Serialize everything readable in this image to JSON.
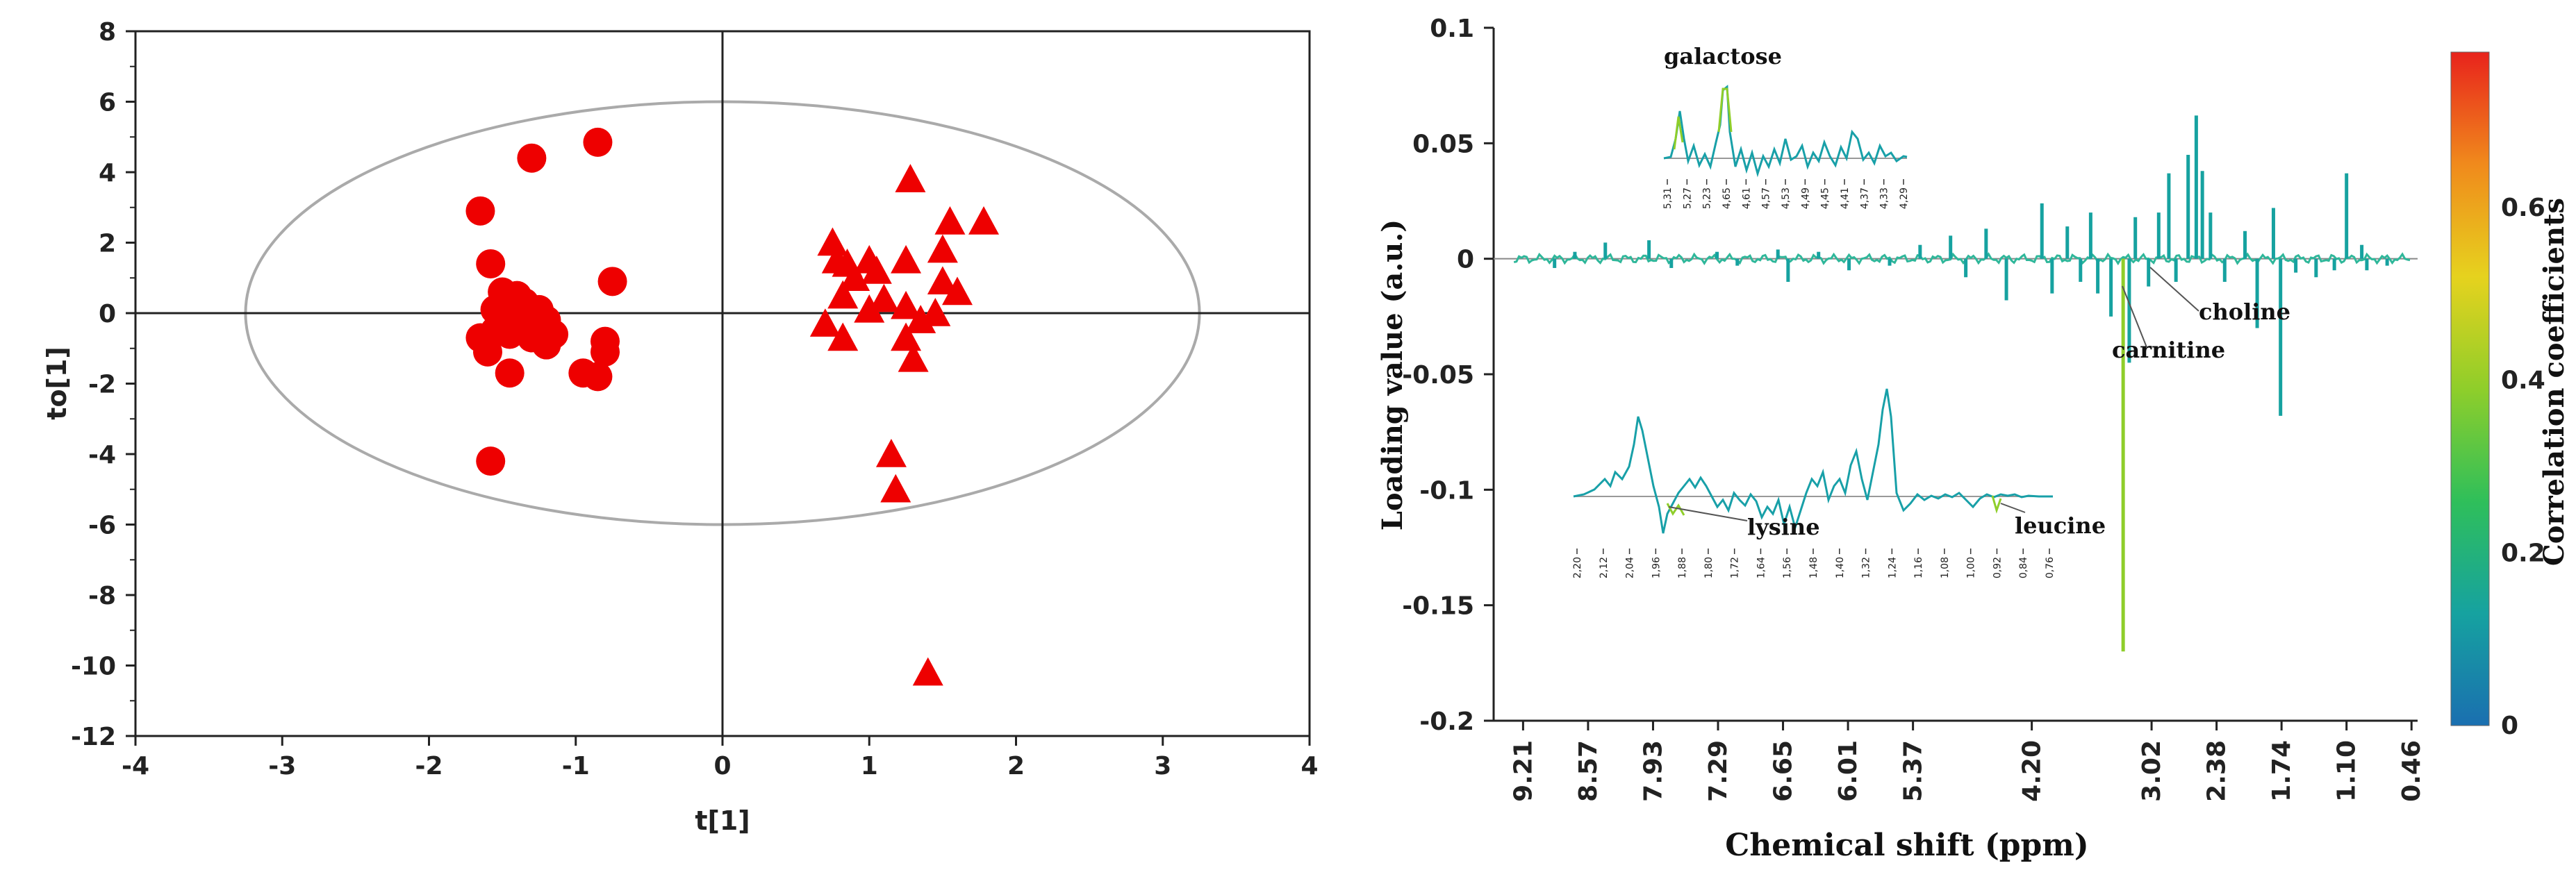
{
  "colors": {
    "points": "#ee0000",
    "ellipse": "#aaaaaa",
    "axis": "#222222"
  },
  "chart_data": [
    {
      "type": "scatter",
      "title": "",
      "xlabel": "t[1]",
      "ylabel": "to[1]",
      "xlim": [
        -4,
        4
      ],
      "ylim": [
        -12,
        8
      ],
      "x_ticks": [
        "-4",
        "-3",
        "-2",
        "-1",
        "0",
        "1",
        "2",
        "3",
        "4"
      ],
      "y_ticks": [
        "8",
        "6",
        "4",
        "2",
        "0",
        "-2",
        "-4",
        "-6",
        "-8",
        "-10",
        "-12"
      ],
      "ellipse": {
        "center": [
          0,
          0
        ],
        "rx": 3.25,
        "ry": 6.0
      },
      "series": [
        {
          "name": "group-circles",
          "marker": "circle",
          "points": [
            [
              -1.65,
              2.9
            ],
            [
              -1.3,
              4.4
            ],
            [
              -0.85,
              4.85
            ],
            [
              -1.58,
              1.4
            ],
            [
              -0.75,
              0.9
            ],
            [
              -1.5,
              0.6
            ],
            [
              -1.4,
              0.5
            ],
            [
              -1.35,
              0.3
            ],
            [
              -1.55,
              0.1
            ],
            [
              -1.45,
              0.0
            ],
            [
              -1.25,
              0.1
            ],
            [
              -1.2,
              -0.2
            ],
            [
              -1.15,
              -0.6
            ],
            [
              -1.35,
              -0.4
            ],
            [
              -1.45,
              -0.6
            ],
            [
              -1.55,
              -0.5
            ],
            [
              -1.65,
              -0.7
            ],
            [
              -1.3,
              -0.7
            ],
            [
              -1.2,
              -0.9
            ],
            [
              -1.6,
              -1.1
            ],
            [
              -0.8,
              -0.8
            ],
            [
              -0.8,
              -1.1
            ],
            [
              -0.95,
              -1.7
            ],
            [
              -0.85,
              -1.8
            ],
            [
              -1.45,
              -1.7
            ],
            [
              -1.58,
              -4.2
            ],
            [
              -1.4,
              -0.2
            ]
          ]
        },
        {
          "name": "group-triangles",
          "marker": "triangle",
          "points": [
            [
              1.28,
              3.8
            ],
            [
              1.55,
              2.6
            ],
            [
              1.78,
              2.6
            ],
            [
              0.75,
              2.0
            ],
            [
              1.5,
              1.8
            ],
            [
              0.78,
              1.5
            ],
            [
              0.85,
              1.4
            ],
            [
              1.0,
              1.5
            ],
            [
              1.25,
              1.5
            ],
            [
              1.05,
              1.2
            ],
            [
              1.5,
              0.9
            ],
            [
              0.9,
              1.0
            ],
            [
              1.6,
              0.6
            ],
            [
              0.82,
              0.5
            ],
            [
              1.1,
              0.4
            ],
            [
              1.25,
              0.2
            ],
            [
              1.0,
              0.1
            ],
            [
              1.45,
              0.0
            ],
            [
              0.7,
              -0.3
            ],
            [
              1.35,
              -0.2
            ],
            [
              0.82,
              -0.7
            ],
            [
              1.25,
              -0.7
            ],
            [
              1.3,
              -1.3
            ],
            [
              1.15,
              -4.0
            ],
            [
              1.18,
              -5.0
            ],
            [
              1.4,
              -10.2
            ]
          ]
        }
      ]
    },
    {
      "type": "line",
      "title": "",
      "xlabel": "Chemical shift (ppm)",
      "ylabel": "Loading value (a.u.)",
      "xlim": [
        9.5,
        0.4
      ],
      "ylim": [
        -0.2,
        0.1
      ],
      "x_ticks": [
        "9.21",
        "8.57",
        "7.93",
        "7.29",
        "6.65",
        "6.01",
        "5.37",
        "4.20",
        "3.02",
        "2.38",
        "1.74",
        "1.10",
        "0.46"
      ],
      "y_ticks": [
        "0.1",
        "0.05",
        "0",
        "-0.05",
        "-0.1",
        "-0.15",
        "-0.2"
      ],
      "colorbar": {
        "label": "Correlation coefficients",
        "ticks": [
          "0",
          "0.2",
          "0.4",
          "0.6"
        ],
        "range": [
          0,
          0.78
        ],
        "colors": [
          "#1a6fb0",
          "#16a2a0",
          "#2fbf5a",
          "#8fce2a",
          "#e6d21e",
          "#f08a1c",
          "#e8231c"
        ]
      },
      "peaks": [
        [
          8.9,
          -0.004
        ],
        [
          8.7,
          0.003
        ],
        [
          8.4,
          0.007
        ],
        [
          7.97,
          0.008
        ],
        [
          7.75,
          -0.004
        ],
        [
          7.3,
          0.003
        ],
        [
          7.1,
          -0.003
        ],
        [
          6.7,
          0.004
        ],
        [
          6.6,
          -0.01
        ],
        [
          6.3,
          0.003
        ],
        [
          6.0,
          -0.005
        ],
        [
          5.6,
          -0.003
        ],
        [
          5.3,
          0.006
        ],
        [
          5.0,
          0.01
        ],
        [
          4.85,
          -0.008
        ],
        [
          4.65,
          0.013
        ],
        [
          4.45,
          -0.018
        ],
        [
          4.1,
          0.024
        ],
        [
          4.0,
          -0.015
        ],
        [
          3.85,
          0.014
        ],
        [
          3.72,
          -0.01
        ],
        [
          3.62,
          0.02
        ],
        [
          3.55,
          -0.015
        ],
        [
          3.42,
          -0.025
        ],
        [
          3.3,
          -0.17
        ],
        [
          3.24,
          -0.045
        ],
        [
          3.18,
          0.018
        ],
        [
          3.05,
          -0.012
        ],
        [
          2.95,
          0.02
        ],
        [
          2.85,
          0.037
        ],
        [
          2.78,
          -0.01
        ],
        [
          2.66,
          0.045
        ],
        [
          2.58,
          0.062
        ],
        [
          2.52,
          0.038
        ],
        [
          2.44,
          0.02
        ],
        [
          2.3,
          -0.01
        ],
        [
          2.1,
          0.012
        ],
        [
          1.98,
          -0.03
        ],
        [
          1.82,
          0.022
        ],
        [
          1.75,
          -0.068
        ],
        [
          1.6,
          -0.006
        ],
        [
          1.4,
          -0.008
        ],
        [
          1.22,
          -0.005
        ],
        [
          1.1,
          0.037
        ],
        [
          0.95,
          0.006
        ],
        [
          0.9,
          -0.005
        ],
        [
          0.7,
          -0.003
        ]
      ],
      "annotations": [
        {
          "label": "galactose"
        },
        {
          "label": "choline"
        },
        {
          "label": "carnitine"
        },
        {
          "label": "lysine"
        },
        {
          "label": "leucine"
        }
      ],
      "inset_top_ticks": [
        "5,31",
        "5,27",
        "5,23",
        "4,65",
        "4,61",
        "4,57",
        "4,53",
        "4,49",
        "4,45",
        "4,41",
        "4,37",
        "4,33",
        "4,29"
      ],
      "inset_bottom_ticks": [
        "2,20",
        "2,12",
        "2,04",
        "1,96",
        "1,88",
        "1,80",
        "1,72",
        "1,64",
        "1,56",
        "1,48",
        "1,40",
        "1,32",
        "1,24",
        "1,16",
        "1,08",
        "1,00",
        "0,92",
        "0,84",
        "0,76"
      ]
    }
  ]
}
